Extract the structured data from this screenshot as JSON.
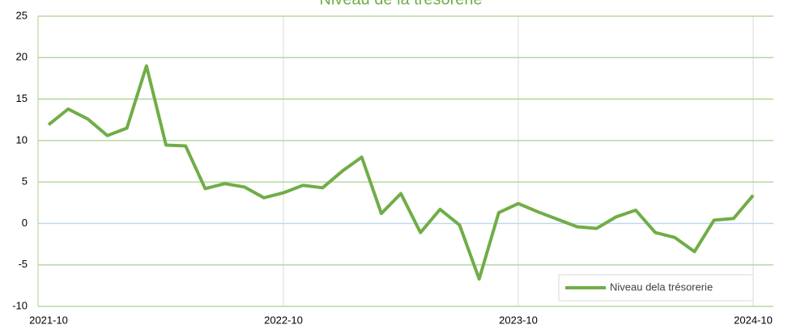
{
  "chart_data": {
    "type": "line",
    "title": "Niveau de la trésorerie",
    "categories": [
      "2021-10",
      null,
      null,
      null,
      null,
      null,
      null,
      null,
      null,
      null,
      null,
      null,
      "2022-10",
      null,
      null,
      null,
      null,
      null,
      null,
      null,
      null,
      null,
      null,
      null,
      "2023-10",
      null,
      null,
      null,
      null,
      null,
      null,
      null,
      null,
      null,
      null,
      null,
      "2024-10"
    ],
    "series": [
      {
        "name": "Niveau dela trésorerie",
        "color": "#70ad47",
        "values": [
          11.9,
          13.8,
          12.6,
          10.6,
          11.5,
          19.0,
          9.45,
          9.35,
          4.2,
          4.8,
          4.4,
          3.1,
          3.7,
          4.6,
          4.3,
          6.3,
          8.0,
          1.2,
          3.6,
          -1.1,
          1.7,
          -0.2,
          -6.7,
          1.3,
          2.4,
          1.4,
          0.5,
          -0.4,
          -0.6,
          0.8,
          1.6,
          -1.1,
          -1.7,
          -3.4,
          0.4,
          0.6,
          3.4
        ]
      }
    ],
    "ylim": [
      -10,
      25
    ],
    "yticks": [
      -10,
      -5,
      0,
      5,
      10,
      15,
      20,
      25
    ],
    "grid": true,
    "legend": "lower right"
  }
}
